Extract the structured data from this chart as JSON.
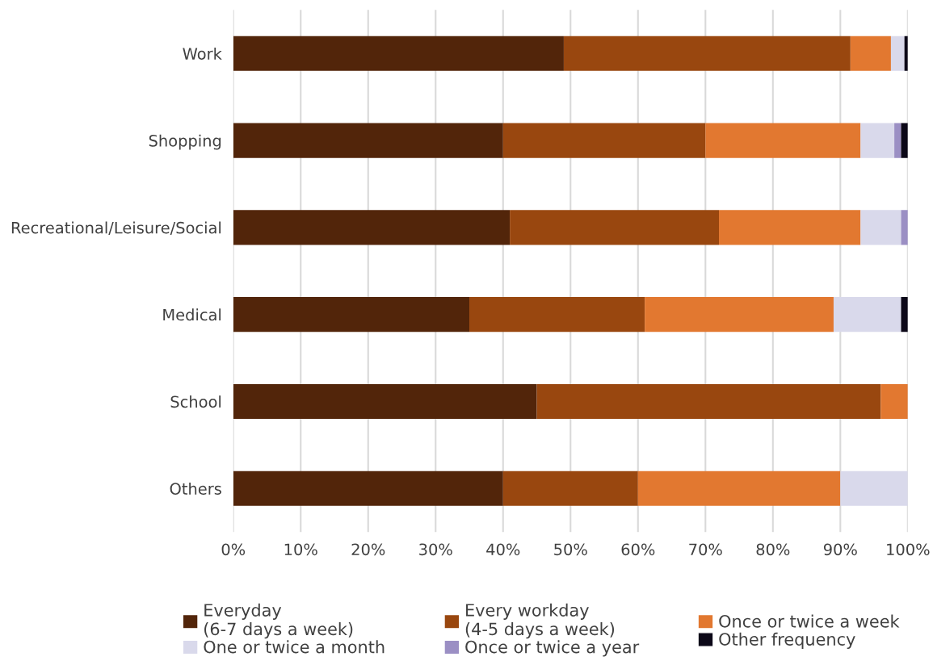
{
  "chart_data": {
    "type": "bar",
    "orientation": "horizontal",
    "stacked": true,
    "categories": [
      "Work",
      "Shopping",
      "Recreational/Leisure/Social",
      "Medical",
      "School",
      "Others"
    ],
    "series": [
      {
        "name": "Everyday\n(6-7 days a week)",
        "color": "#52250a",
        "values": [
          49,
          40,
          41,
          35,
          45,
          40
        ]
      },
      {
        "name": "Every workday\n(4-5 days a week)",
        "color": "#99470f",
        "values": [
          42.5,
          30,
          31,
          26,
          51,
          20
        ]
      },
      {
        "name": "Once or twice a week",
        "color": "#e27830",
        "values": [
          6,
          23,
          21,
          28,
          4,
          30
        ]
      },
      {
        "name": "One or twice a month",
        "color": "#d9d9eb",
        "values": [
          2,
          5,
          6,
          10,
          0,
          10
        ]
      },
      {
        "name": "Once or twice a year",
        "color": "#9b8fc4",
        "values": [
          0,
          1,
          1,
          0,
          0,
          0
        ]
      },
      {
        "name": "Other frequency",
        "color": "#0c0818",
        "values": [
          0.5,
          1,
          0,
          1,
          0,
          0
        ]
      }
    ],
    "xlim": [
      0,
      100
    ],
    "xticks": [
      {
        "value": 0,
        "label": "0%"
      },
      {
        "value": 10,
        "label": "10%"
      },
      {
        "value": 20,
        "label": "20%"
      },
      {
        "value": 30,
        "label": "30%"
      },
      {
        "value": 40,
        "label": "40%"
      },
      {
        "value": 50,
        "label": "50%"
      },
      {
        "value": 60,
        "label": "60%"
      },
      {
        "value": 70,
        "label": "70%"
      },
      {
        "value": 80,
        "label": "80%"
      },
      {
        "value": 90,
        "label": "90%"
      },
      {
        "value": 100,
        "label": "100%"
      }
    ],
    "grid": "x",
    "legend": "bottom"
  }
}
